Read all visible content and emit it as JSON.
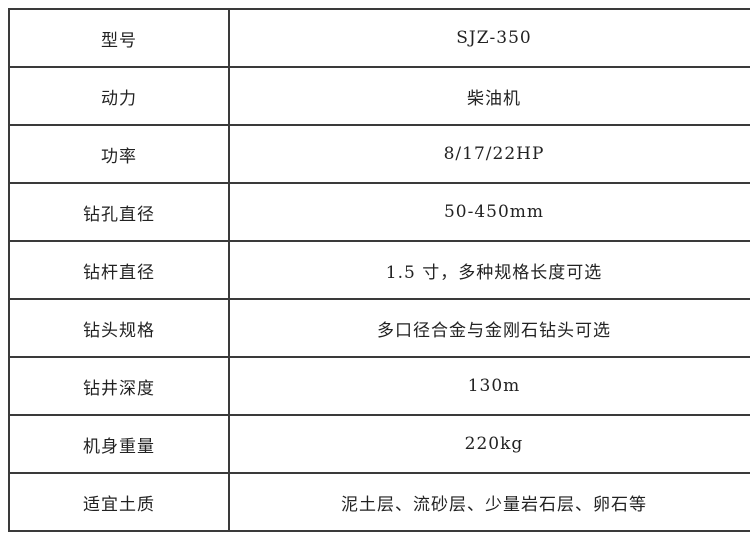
{
  "table": {
    "title_semantic": "drilling-machine-specifications",
    "model_accent_color": "#222222",
    "border_color": "#3a3a3a",
    "rows": [
      {
        "label": "型号",
        "value": "SJZ-350"
      },
      {
        "label": "动力",
        "value": "柴油机"
      },
      {
        "label": "功率",
        "value": "8/17/22HP"
      },
      {
        "label": "钻孔直径",
        "value": "50-450mm"
      },
      {
        "label": "钻杆直径",
        "value": "1.5 寸，多种规格长度可选"
      },
      {
        "label": "钻头规格",
        "value": "多口径合金与金刚石钻头可选"
      },
      {
        "label": "钻井深度",
        "value": "130m"
      },
      {
        "label": "机身重量",
        "value": "220kg"
      },
      {
        "label": "适宜土质",
        "value": "泥土层、流砂层、少量岩石层、卵石等"
      }
    ]
  }
}
